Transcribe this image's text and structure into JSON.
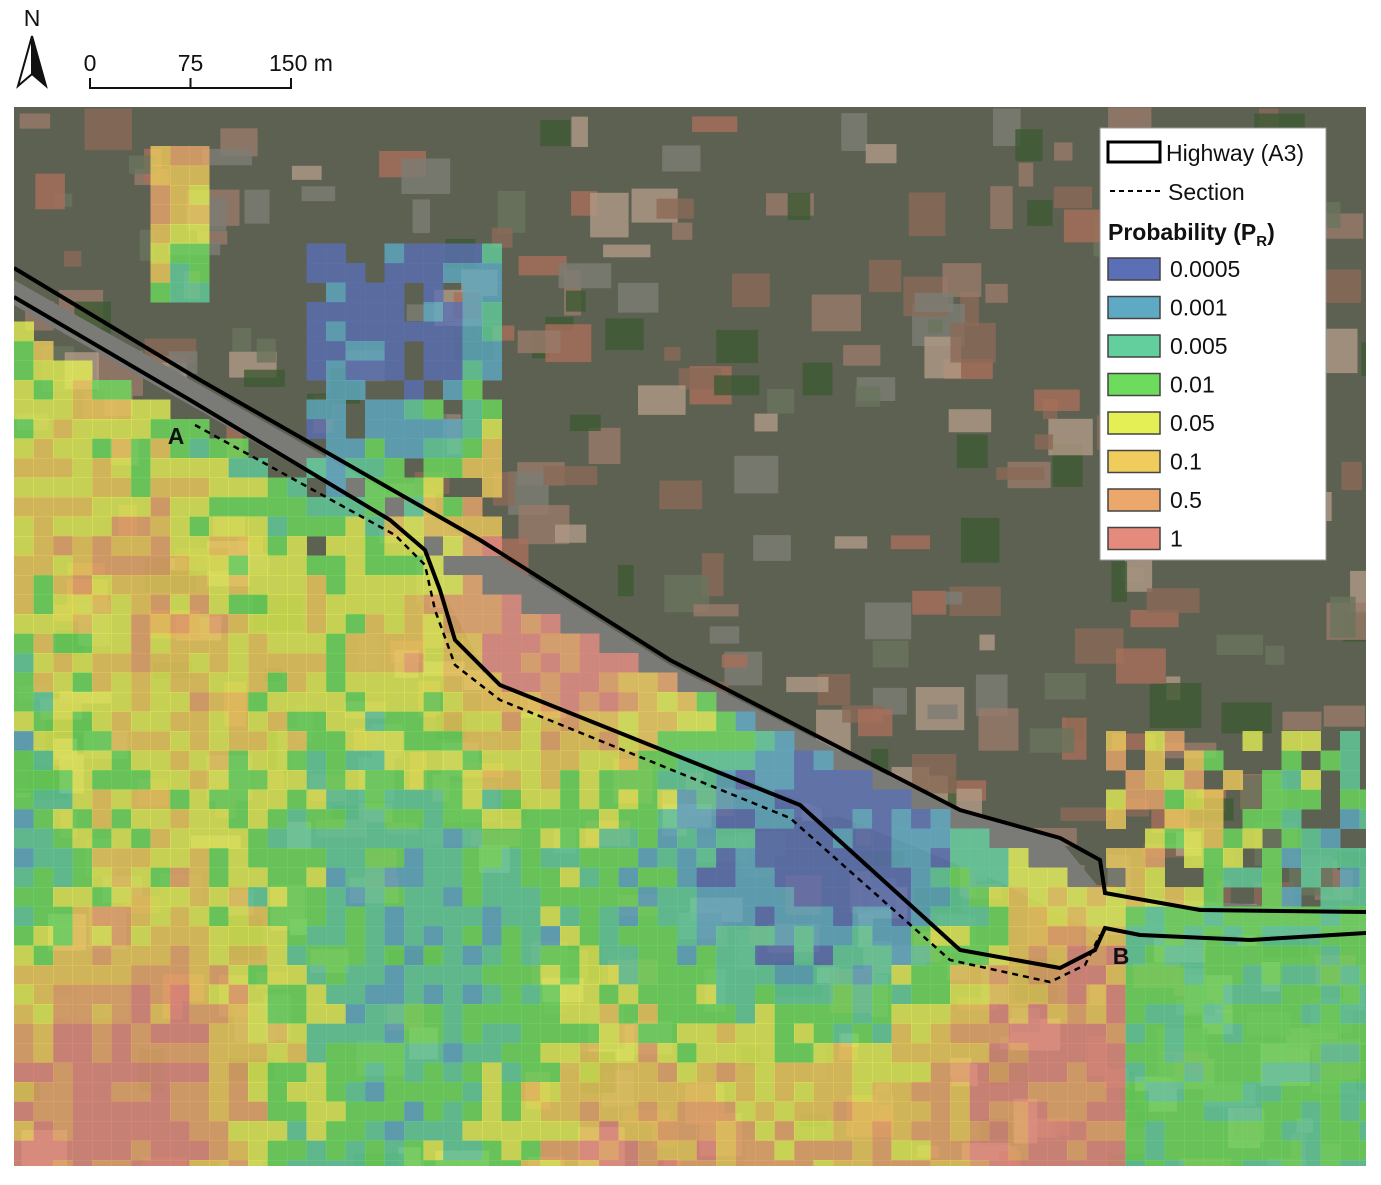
{
  "north_arrow": {
    "label": "N"
  },
  "scale_bar": {
    "ticks": [
      0,
      75,
      {
        "value": 150,
        "label": "150 m"
      }
    ]
  },
  "legend": {
    "highway": "Highway (A3)",
    "section": "Section",
    "title": "Probability (P",
    "title_subscript": "R",
    "title_end": ")",
    "classes": [
      {
        "value": 0.0005,
        "color": "#5a6fb5"
      },
      {
        "value": 0.001,
        "color": "#5eaac4"
      },
      {
        "value": 0.005,
        "color": "#62cf9c"
      },
      {
        "value": 0.01,
        "color": "#6ddc5c"
      },
      {
        "value": 0.05,
        "color": "#e4ef55"
      },
      {
        "value": 0.1,
        "color": "#efcc5c"
      },
      {
        "value": 0.5,
        "color": "#eca86a"
      },
      {
        "value": 1,
        "color": "#e58b7e"
      }
    ]
  },
  "section_points": [
    "A",
    "B"
  ]
}
